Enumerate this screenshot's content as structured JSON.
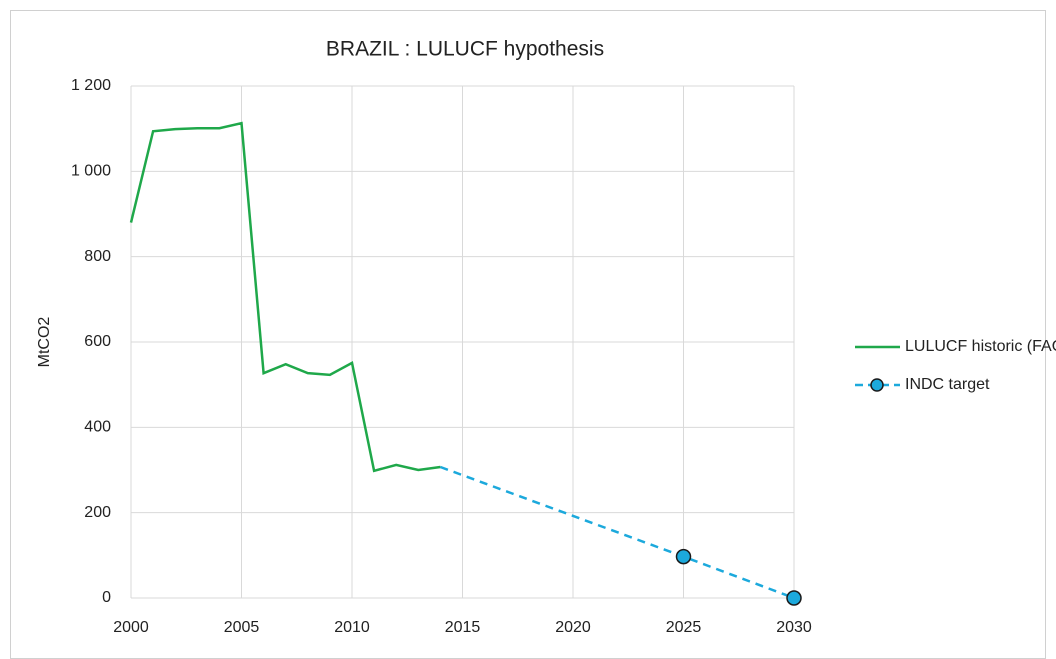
{
  "chart_data": {
    "type": "line",
    "title": "BRAZIL : LULUCF hypothesis",
    "y_label": "MtCO2",
    "series": [
      {
        "name": "LULUCF historic (FAO)",
        "color": "#1fa84a",
        "dashed": false,
        "markers": false,
        "x": [
          2000,
          2001,
          2002,
          2003,
          2004,
          2005,
          2006,
          2007,
          2008,
          2009,
          2010,
          2011,
          2012,
          2013,
          2014
        ],
        "values": [
          880,
          1094,
          1099,
          1101,
          1101,
          1113,
          527,
          548,
          527,
          523,
          551,
          298,
          312,
          300,
          307
        ]
      },
      {
        "name": "INDC target",
        "color": "#1ca9dc",
        "dashed": true,
        "markers": true,
        "x": [
          2014,
          2025,
          2030
        ],
        "values": [
          307,
          97,
          0
        ]
      }
    ],
    "xlim": [
      2000,
      2030
    ],
    "xticks": [
      2000,
      2005,
      2010,
      2015,
      2020,
      2025,
      2030
    ],
    "ylim": [
      0,
      1200
    ],
    "yticks": [
      0,
      200,
      400,
      600,
      800,
      {
        "value": 1000,
        "label": "1 000"
      },
      {
        "value": 1200,
        "label": "1 200"
      }
    ],
    "grid": true,
    "legend": "right"
  }
}
